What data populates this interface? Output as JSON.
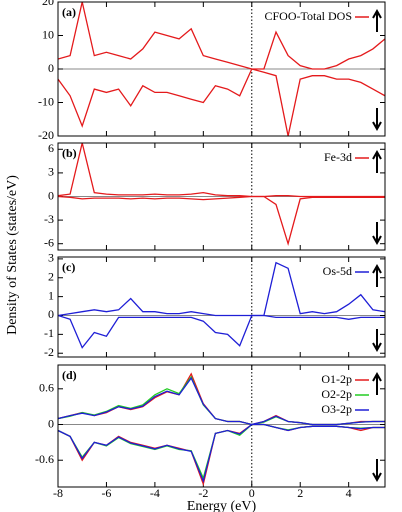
{
  "ylabel": "Density of States (states/eV)",
  "chart_data": [
    {
      "type": "line",
      "label": "(a)",
      "xlim": [
        -8,
        5.5
      ],
      "xticks": [
        -8,
        -6,
        -4,
        -2,
        0,
        2,
        4
      ],
      "ylim": [
        -20,
        20
      ],
      "yticks": [
        -20,
        -10,
        0,
        10,
        20
      ],
      "x": [
        -8,
        -7.5,
        -7,
        -6.5,
        -6,
        -5.5,
        -5,
        -4.5,
        -4,
        -3.5,
        -3,
        -2.5,
        -2,
        -1.5,
        -1,
        -0.5,
        0,
        0.5,
        1,
        1.5,
        2,
        2.5,
        3,
        3.5,
        4,
        4.5,
        5,
        5.5
      ],
      "series": [
        {
          "name": "CFOO-Total DOS",
          "color": "#e41a1c",
          "values": [
            3,
            4,
            20,
            4,
            5,
            4,
            3,
            6,
            11,
            10,
            9,
            12,
            4,
            3,
            2,
            1,
            0,
            0,
            11,
            4,
            1,
            0,
            0,
            1,
            3,
            4,
            6,
            9
          ],
          "values_down": [
            -3,
            -8,
            -17,
            -6,
            -7,
            -6,
            -11,
            -5,
            -7,
            -7,
            -8,
            -9,
            -10,
            -5,
            -6,
            -8,
            0,
            -1,
            -2,
            -20,
            -3,
            -2,
            -2,
            -3,
            -3,
            -4,
            -6,
            -8
          ]
        }
      ]
    },
    {
      "type": "line",
      "label": "(b)",
      "xlim": [
        -8,
        5.5
      ],
      "xticks": [
        -8,
        -6,
        -4,
        -2,
        0,
        2,
        4
      ],
      "ylim": [
        -6.8,
        6.8
      ],
      "yticks": [
        -6,
        -3,
        0,
        3,
        6
      ],
      "x": [
        -8,
        -7.5,
        -7,
        -6.5,
        -6,
        -5.5,
        -5,
        -4.5,
        -4,
        -3.5,
        -3,
        -2.5,
        -2,
        -1.5,
        -1,
        -0.5,
        0,
        0.5,
        1,
        1.5,
        2,
        2.5,
        3,
        3.5,
        4,
        4.5,
        5,
        5.5
      ],
      "series": [
        {
          "name": "Fe-3d",
          "color": "#e41a1c",
          "values": [
            0.1,
            0.3,
            6.8,
            0.5,
            0.3,
            0.2,
            0.2,
            0.2,
            0.3,
            0.2,
            0.2,
            0.3,
            0.5,
            0.2,
            0.1,
            0.1,
            0,
            0,
            0.1,
            0.1,
            0,
            0,
            0,
            0,
            0,
            0,
            0,
            0
          ],
          "values_down": [
            0,
            -0.1,
            -0.3,
            -0.2,
            -0.2,
            -0.2,
            -0.3,
            -0.2,
            -0.3,
            -0.2,
            -0.2,
            -0.3,
            -0.4,
            -0.3,
            -0.2,
            -0.1,
            0,
            0,
            -1,
            -6,
            -0.3,
            -0.1,
            -0.1,
            -0.1,
            -0.1,
            -0.1,
            -0.1,
            -0.1
          ]
        }
      ]
    },
    {
      "type": "line",
      "label": "(c)",
      "xlim": [
        -8,
        5.5
      ],
      "xticks": [
        -8,
        -6,
        -4,
        -2,
        0,
        2,
        4
      ],
      "ylim": [
        -2.2,
        3.1
      ],
      "yticks": [
        -2,
        -1,
        0,
        1,
        2,
        3
      ],
      "x": [
        -8,
        -7.5,
        -7,
        -6.5,
        -6,
        -5.5,
        -5,
        -4.5,
        -4,
        -3.5,
        -3,
        -2.5,
        -2,
        -1.5,
        -1,
        -0.5,
        0,
        0.5,
        1,
        1.5,
        2,
        2.5,
        3,
        3.5,
        4,
        4.5,
        5,
        5.5
      ],
      "series": [
        {
          "name": "Os-5d",
          "color": "#1f1fd6",
          "values": [
            0,
            0.1,
            0.2,
            0.3,
            0.2,
            0.3,
            0.9,
            0.2,
            0.2,
            0.1,
            0.1,
            0.2,
            0.1,
            0,
            0,
            0,
            0,
            0,
            2.8,
            2.5,
            0.1,
            0.2,
            0.1,
            0.2,
            0.6,
            1.1,
            0.3,
            0.2
          ],
          "values_down": [
            0,
            -0.2,
            -1.7,
            -0.9,
            -1.1,
            -0.1,
            -0.1,
            -0.1,
            -0.1,
            -0.1,
            -0.1,
            -0.1,
            -0.3,
            -0.9,
            -1,
            -1.6,
            0,
            0,
            -0.1,
            -0.1,
            -0.1,
            -0.1,
            -0.1,
            -0.1,
            -0.2,
            -0.1,
            -0.1,
            -0.1
          ]
        }
      ]
    },
    {
      "type": "line",
      "label": "(d)",
      "xlabel": "Energy (eV)",
      "xlim": [
        -8,
        5.5
      ],
      "xticks": [
        -8,
        -6,
        -4,
        -2,
        0,
        2,
        4
      ],
      "ylim": [
        -1.05,
        1.0
      ],
      "yticks": [
        -0.6,
        0,
        0.6
      ],
      "x": [
        -8,
        -7.5,
        -7,
        -6.5,
        -6,
        -5.5,
        -5,
        -4.5,
        -4,
        -3.5,
        -3,
        -2.5,
        -2,
        -1.5,
        -1,
        -0.5,
        0,
        0.5,
        1,
        1.5,
        2,
        2.5,
        3,
        3.5,
        4,
        4.5,
        5,
        5.5
      ],
      "series": [
        {
          "name": "O1-2p",
          "color": "#e41a1c",
          "values": [
            0.1,
            0.15,
            0.2,
            0.15,
            0.2,
            0.3,
            0.25,
            0.3,
            0.45,
            0.55,
            0.5,
            0.85,
            0.35,
            0.1,
            0.05,
            0.05,
            0,
            0.05,
            0.15,
            0.05,
            0.03,
            0,
            0,
            0,
            0.02,
            0.05,
            0.05,
            0.05
          ],
          "values_down": [
            -0.1,
            -0.2,
            -0.6,
            -0.3,
            -0.35,
            -0.2,
            -0.3,
            -0.35,
            -0.4,
            -0.35,
            -0.4,
            -0.45,
            -1.0,
            -0.15,
            -0.1,
            -0.15,
            0,
            0,
            -0.05,
            -0.1,
            -0.05,
            -0.03,
            -0.03,
            -0.03,
            -0.05,
            -0.1,
            -0.05,
            -0.05
          ]
        },
        {
          "name": "O2-2p",
          "color": "#22cc22",
          "values": [
            0.1,
            0.14,
            0.2,
            0.16,
            0.22,
            0.32,
            0.27,
            0.33,
            0.5,
            0.6,
            0.52,
            0.8,
            0.33,
            0.1,
            0.05,
            0.05,
            0,
            0.04,
            0.13,
            0.05,
            0.03,
            0,
            0,
            0,
            0.02,
            0.04,
            0.05,
            0.05
          ],
          "values_down": [
            -0.1,
            -0.2,
            -0.55,
            -0.3,
            -0.36,
            -0.22,
            -0.32,
            -0.37,
            -0.42,
            -0.36,
            -0.42,
            -0.44,
            -0.9,
            -0.15,
            -0.1,
            -0.18,
            0,
            0,
            -0.05,
            -0.09,
            -0.05,
            -0.03,
            -0.03,
            -0.03,
            -0.05,
            -0.06,
            -0.05,
            -0.05
          ]
        },
        {
          "name": "O3-2p",
          "color": "#1f1fd6",
          "values": [
            0.1,
            0.15,
            0.19,
            0.15,
            0.21,
            0.3,
            0.26,
            0.31,
            0.47,
            0.56,
            0.5,
            0.78,
            0.34,
            0.1,
            0.05,
            0.05,
            0,
            0.05,
            0.14,
            0.05,
            0.03,
            0,
            0,
            0,
            0.02,
            0.04,
            0.05,
            0.05
          ],
          "values_down": [
            -0.1,
            -0.2,
            -0.57,
            -0.3,
            -0.35,
            -0.21,
            -0.31,
            -0.36,
            -0.41,
            -0.35,
            -0.41,
            -0.45,
            -0.95,
            -0.15,
            -0.1,
            -0.16,
            0,
            0,
            -0.05,
            -0.1,
            -0.05,
            -0.03,
            -0.03,
            -0.03,
            -0.05,
            -0.07,
            -0.05,
            -0.05
          ]
        }
      ]
    }
  ]
}
